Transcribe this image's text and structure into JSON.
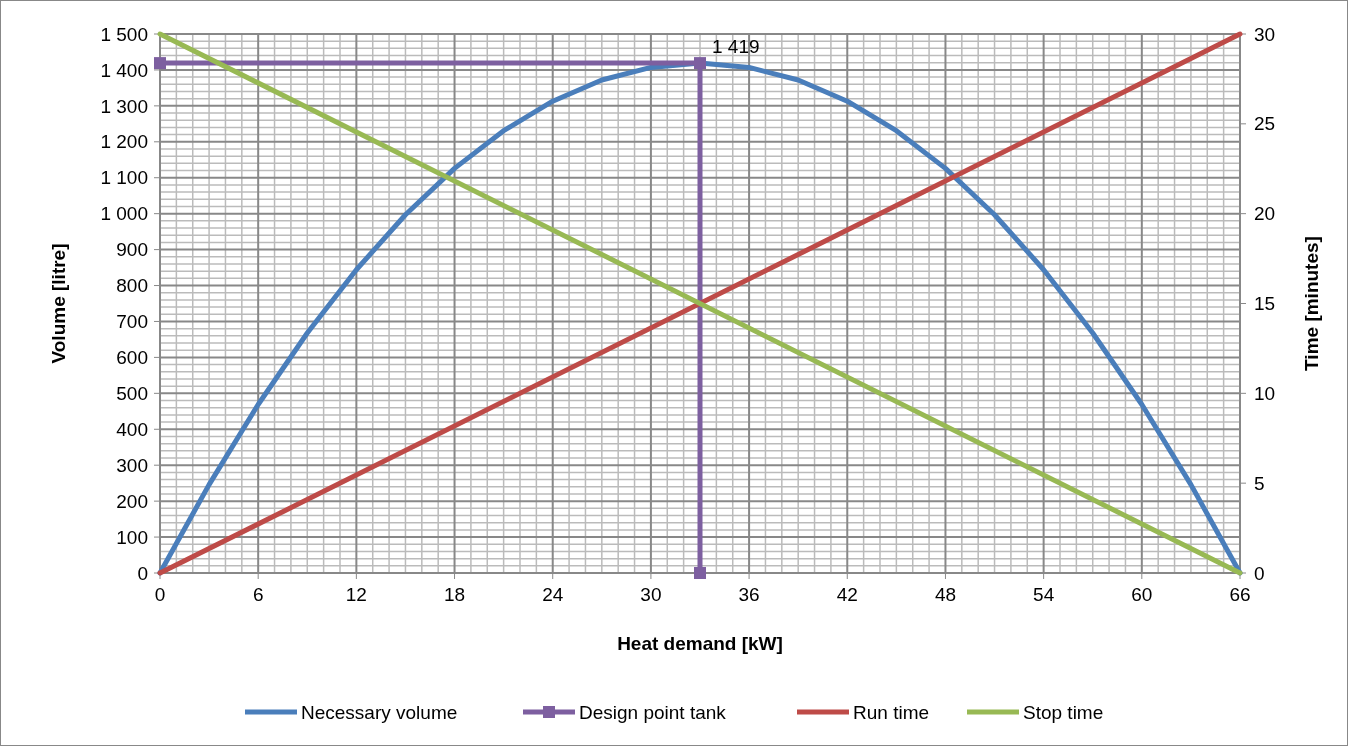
{
  "chart_data": {
    "type": "line",
    "xlabel": "Heat demand [kW]",
    "ylabel": "Volume [litre]",
    "y2label": "Time [minutes]",
    "xlim": [
      0,
      66
    ],
    "xticks": [
      0,
      6,
      12,
      18,
      24,
      30,
      36,
      42,
      48,
      54,
      60,
      66
    ],
    "ylim": [
      0,
      1500
    ],
    "yticks": [
      0,
      100,
      200,
      300,
      400,
      500,
      600,
      700,
      800,
      900,
      {
        "value": 1000,
        "label": "1 000"
      },
      {
        "value": 1100,
        "label": "1 100"
      },
      {
        "value": 1200,
        "label": "1 200"
      },
      {
        "value": 1300,
        "label": "1 300"
      },
      {
        "value": 1400,
        "label": "1 400"
      },
      {
        "value": 1500,
        "label": "1 500"
      }
    ],
    "y2lim": [
      0,
      30
    ],
    "y2ticks": [
      0,
      5,
      10,
      15,
      20,
      25,
      30
    ],
    "grid": true,
    "legend": "bottom",
    "line_style": "solid",
    "annotations": [
      {
        "text": "1 419",
        "x": 33,
        "y": 1419
      }
    ],
    "series": [
      {
        "name": "Necessary volume",
        "color": "#4a7ebb",
        "marker": "none",
        "x": [
          0,
          3,
          6,
          9,
          12,
          15,
          18,
          21,
          24,
          27,
          30,
          33,
          36,
          39,
          42,
          45,
          48,
          51,
          54,
          57,
          60,
          63,
          66
        ],
        "values": [
          0,
          246,
          469,
          668,
          844,
          997,
          1126,
          1231,
          1313,
          1372,
          1407,
          1419,
          1407,
          1372,
          1313,
          1231,
          1126,
          997,
          844,
          668,
          469,
          246,
          0
        ]
      },
      {
        "name": "Design point tank",
        "color": "#7d5fa0",
        "marker": "square",
        "x": [
          0,
          33,
          33
        ],
        "values": [
          1419,
          1419,
          0
        ]
      },
      {
        "name": "Run time",
        "color": "#be4b48",
        "marker": "none",
        "axis": "y2",
        "x": [
          0,
          66
        ],
        "values": [
          0,
          30
        ]
      },
      {
        "name": "Stop time",
        "color": "#98b954",
        "marker": "none",
        "axis": "y2",
        "x": [
          0,
          66
        ],
        "values": [
          30,
          0
        ]
      }
    ]
  }
}
